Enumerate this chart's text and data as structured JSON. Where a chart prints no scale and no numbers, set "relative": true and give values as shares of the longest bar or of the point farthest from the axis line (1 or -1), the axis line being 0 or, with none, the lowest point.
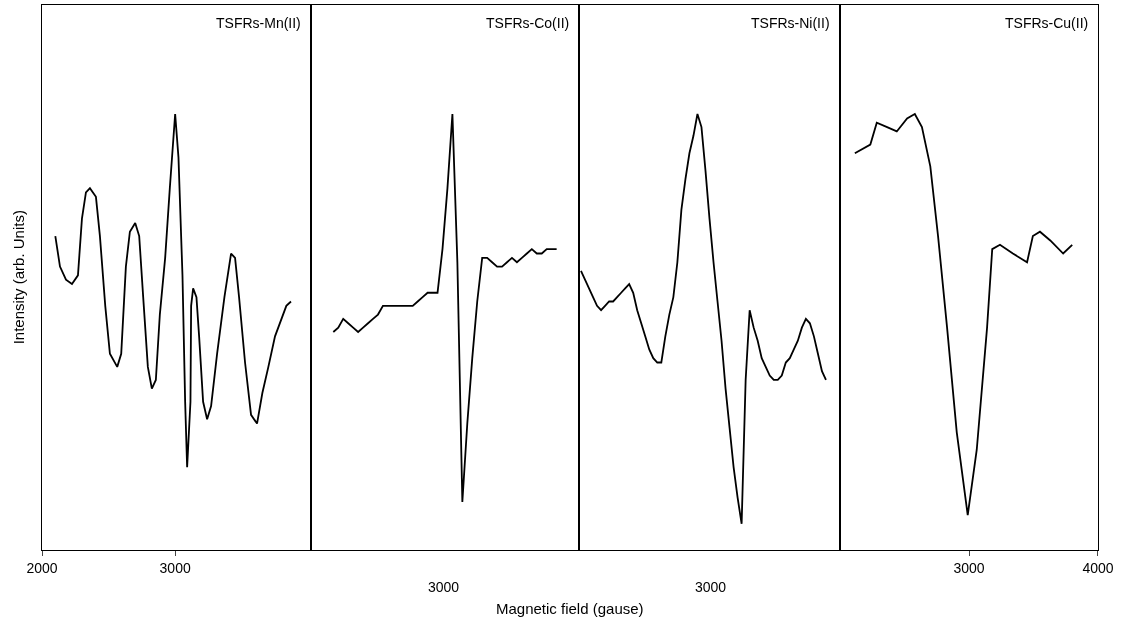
{
  "chart_data": [
    {
      "type": "line",
      "title": "TSFRs-Mn(II)",
      "ylabel": "Intensity (arb. Units)",
      "relative": true,
      "tick_labels": "x",
      "xlim": [
        2000,
        4020
      ],
      "xticks": [
        2000,
        3000
      ],
      "series": [
        {
          "color": "#000000",
          "x": [
            2100,
            2135,
            2180,
            2225,
            2270,
            2300,
            2330,
            2360,
            2405,
            2435,
            2475,
            2510,
            2565,
            2595,
            2630,
            2660,
            2700,
            2730,
            2760,
            2795,
            2825,
            2855,
            2885,
            2925,
            2960,
            3000,
            3025,
            3055,
            3075,
            3090,
            3115,
            3120,
            3135,
            3160,
            3180,
            3210,
            3240,
            3270,
            3315,
            3370,
            3420,
            3450,
            3480,
            3525,
            3570,
            3615,
            3655,
            3700,
            3750,
            3835,
            3870
          ],
          "values": [
            0.72,
            0.65,
            0.62,
            0.61,
            0.63,
            0.76,
            0.82,
            0.83,
            0.81,
            0.72,
            0.56,
            0.45,
            0.42,
            0.45,
            0.65,
            0.73,
            0.75,
            0.72,
            0.58,
            0.42,
            0.37,
            0.39,
            0.54,
            0.67,
            0.83,
            1,
            0.9,
            0.63,
            0.34,
            0.19,
            0.34,
            0.56,
            0.6,
            0.58,
            0.49,
            0.34,
            0.3,
            0.33,
            0.45,
            0.58,
            0.68,
            0.67,
            0.58,
            0.43,
            0.31,
            0.29,
            0.36,
            0.42,
            0.49,
            0.56,
            0.57
          ]
        }
      ]
    },
    {
      "type": "line",
      "title": "TSFRs-Co(II)",
      "xlabel": "Magnetic field (gause)",
      "relative": true,
      "tick_labels": false,
      "annotations": [
        "3000"
      ],
      "categories": [
        null,
        null,
        null,
        null,
        null,
        null,
        null,
        null,
        null,
        null,
        null,
        null,
        null,
        null,
        null,
        null,
        null,
        null,
        null,
        null,
        null,
        null,
        null,
        null,
        null,
        null,
        null,
        null,
        null,
        null,
        null,
        null,
        null,
        null,
        null,
        null,
        null,
        null,
        null,
        null,
        null,
        null,
        null,
        null,
        null,
        null,
        null,
        null,
        null,
        null,
        null,
        null,
        null,
        null
      ],
      "series": [
        {
          "color": "#000000",
          "values": [
            null,
            null,
            null,
            null,
            0.5,
            0.51,
            0.53,
            0.52,
            0.51,
            0.5,
            0.51,
            0.52,
            0.53,
            0.54,
            0.56,
            0.56,
            0.56,
            0.56,
            0.56,
            0.56,
            0.56,
            0.57,
            0.58,
            0.59,
            0.59,
            0.59,
            0.69,
            0.83,
            1,
            0.66,
            0.11,
            0.29,
            0.44,
            0.57,
            0.67,
            0.67,
            0.66,
            0.65,
            0.65,
            0.66,
            0.67,
            0.66,
            0.67,
            0.68,
            0.69,
            0.68,
            0.68,
            0.69,
            0.69,
            0.69,
            null,
            null,
            null,
            null
          ]
        }
      ]
    },
    {
      "type": "line",
      "title": "TSFRs-Ni(II)",
      "relative": true,
      "tick_labels": false,
      "annotations": [
        "3000"
      ],
      "categories": [
        null,
        null,
        null,
        null,
        null,
        null,
        null,
        null,
        null,
        null,
        null,
        null,
        null,
        null,
        null,
        null,
        null,
        null,
        null,
        null,
        null,
        null,
        null,
        null,
        null,
        null,
        null,
        null,
        null,
        null,
        null,
        null,
        null,
        null,
        null,
        null,
        null,
        null,
        null,
        null,
        null,
        null,
        null,
        null,
        null,
        null,
        null,
        null,
        null,
        null,
        null,
        null,
        null,
        null,
        null,
        null,
        null,
        null,
        null,
        null,
        null,
        null,
        null,
        null,
        null
      ],
      "series": [
        {
          "color": "#000000",
          "values": [
            0.64,
            0.62,
            0.6,
            0.58,
            0.56,
            0.55,
            0.56,
            0.57,
            0.57,
            0.58,
            0.59,
            0.6,
            0.61,
            0.59,
            0.55,
            0.52,
            0.49,
            0.46,
            0.44,
            0.43,
            0.43,
            0.49,
            0.54,
            0.58,
            0.66,
            0.78,
            0.85,
            0.91,
            0.95,
            1,
            0.97,
            0.87,
            0.76,
            0.66,
            0.57,
            0.48,
            0.37,
            0.28,
            0.19,
            0.12,
            0.06,
            0.39,
            0.55,
            0.51,
            0.48,
            0.44,
            0.42,
            0.4,
            0.39,
            0.39,
            0.4,
            0.43,
            0.44,
            0.46,
            0.48,
            0.51,
            0.53,
            0.52,
            0.49,
            0.45,
            0.41,
            0.39,
            null,
            null,
            null
          ]
        }
      ]
    },
    {
      "type": "line",
      "title": "TSFRs-Cu(II)",
      "relative": true,
      "tick_labels": "x",
      "xlim": [
        2000,
        4000
      ],
      "xticks": [
        3000,
        4000
      ],
      "series": [
        {
          "color": "#000000",
          "x": [
            2115,
            2235,
            2285,
            2365,
            2440,
            2520,
            2580,
            2635,
            2700,
            2760,
            2830,
            2905,
            2990,
            3060,
            3140,
            3180,
            3240,
            3340,
            3450,
            3495,
            3550,
            3630,
            3730,
            3800
          ],
          "values": [
            0.91,
            0.93,
            0.98,
            0.97,
            0.96,
            0.99,
            1,
            0.97,
            0.88,
            0.72,
            0.51,
            0.27,
            0.08,
            0.23,
            0.51,
            0.69,
            0.7,
            0.68,
            0.66,
            0.72,
            0.73,
            0.71,
            0.68,
            0.7
          ]
        }
      ]
    }
  ]
}
